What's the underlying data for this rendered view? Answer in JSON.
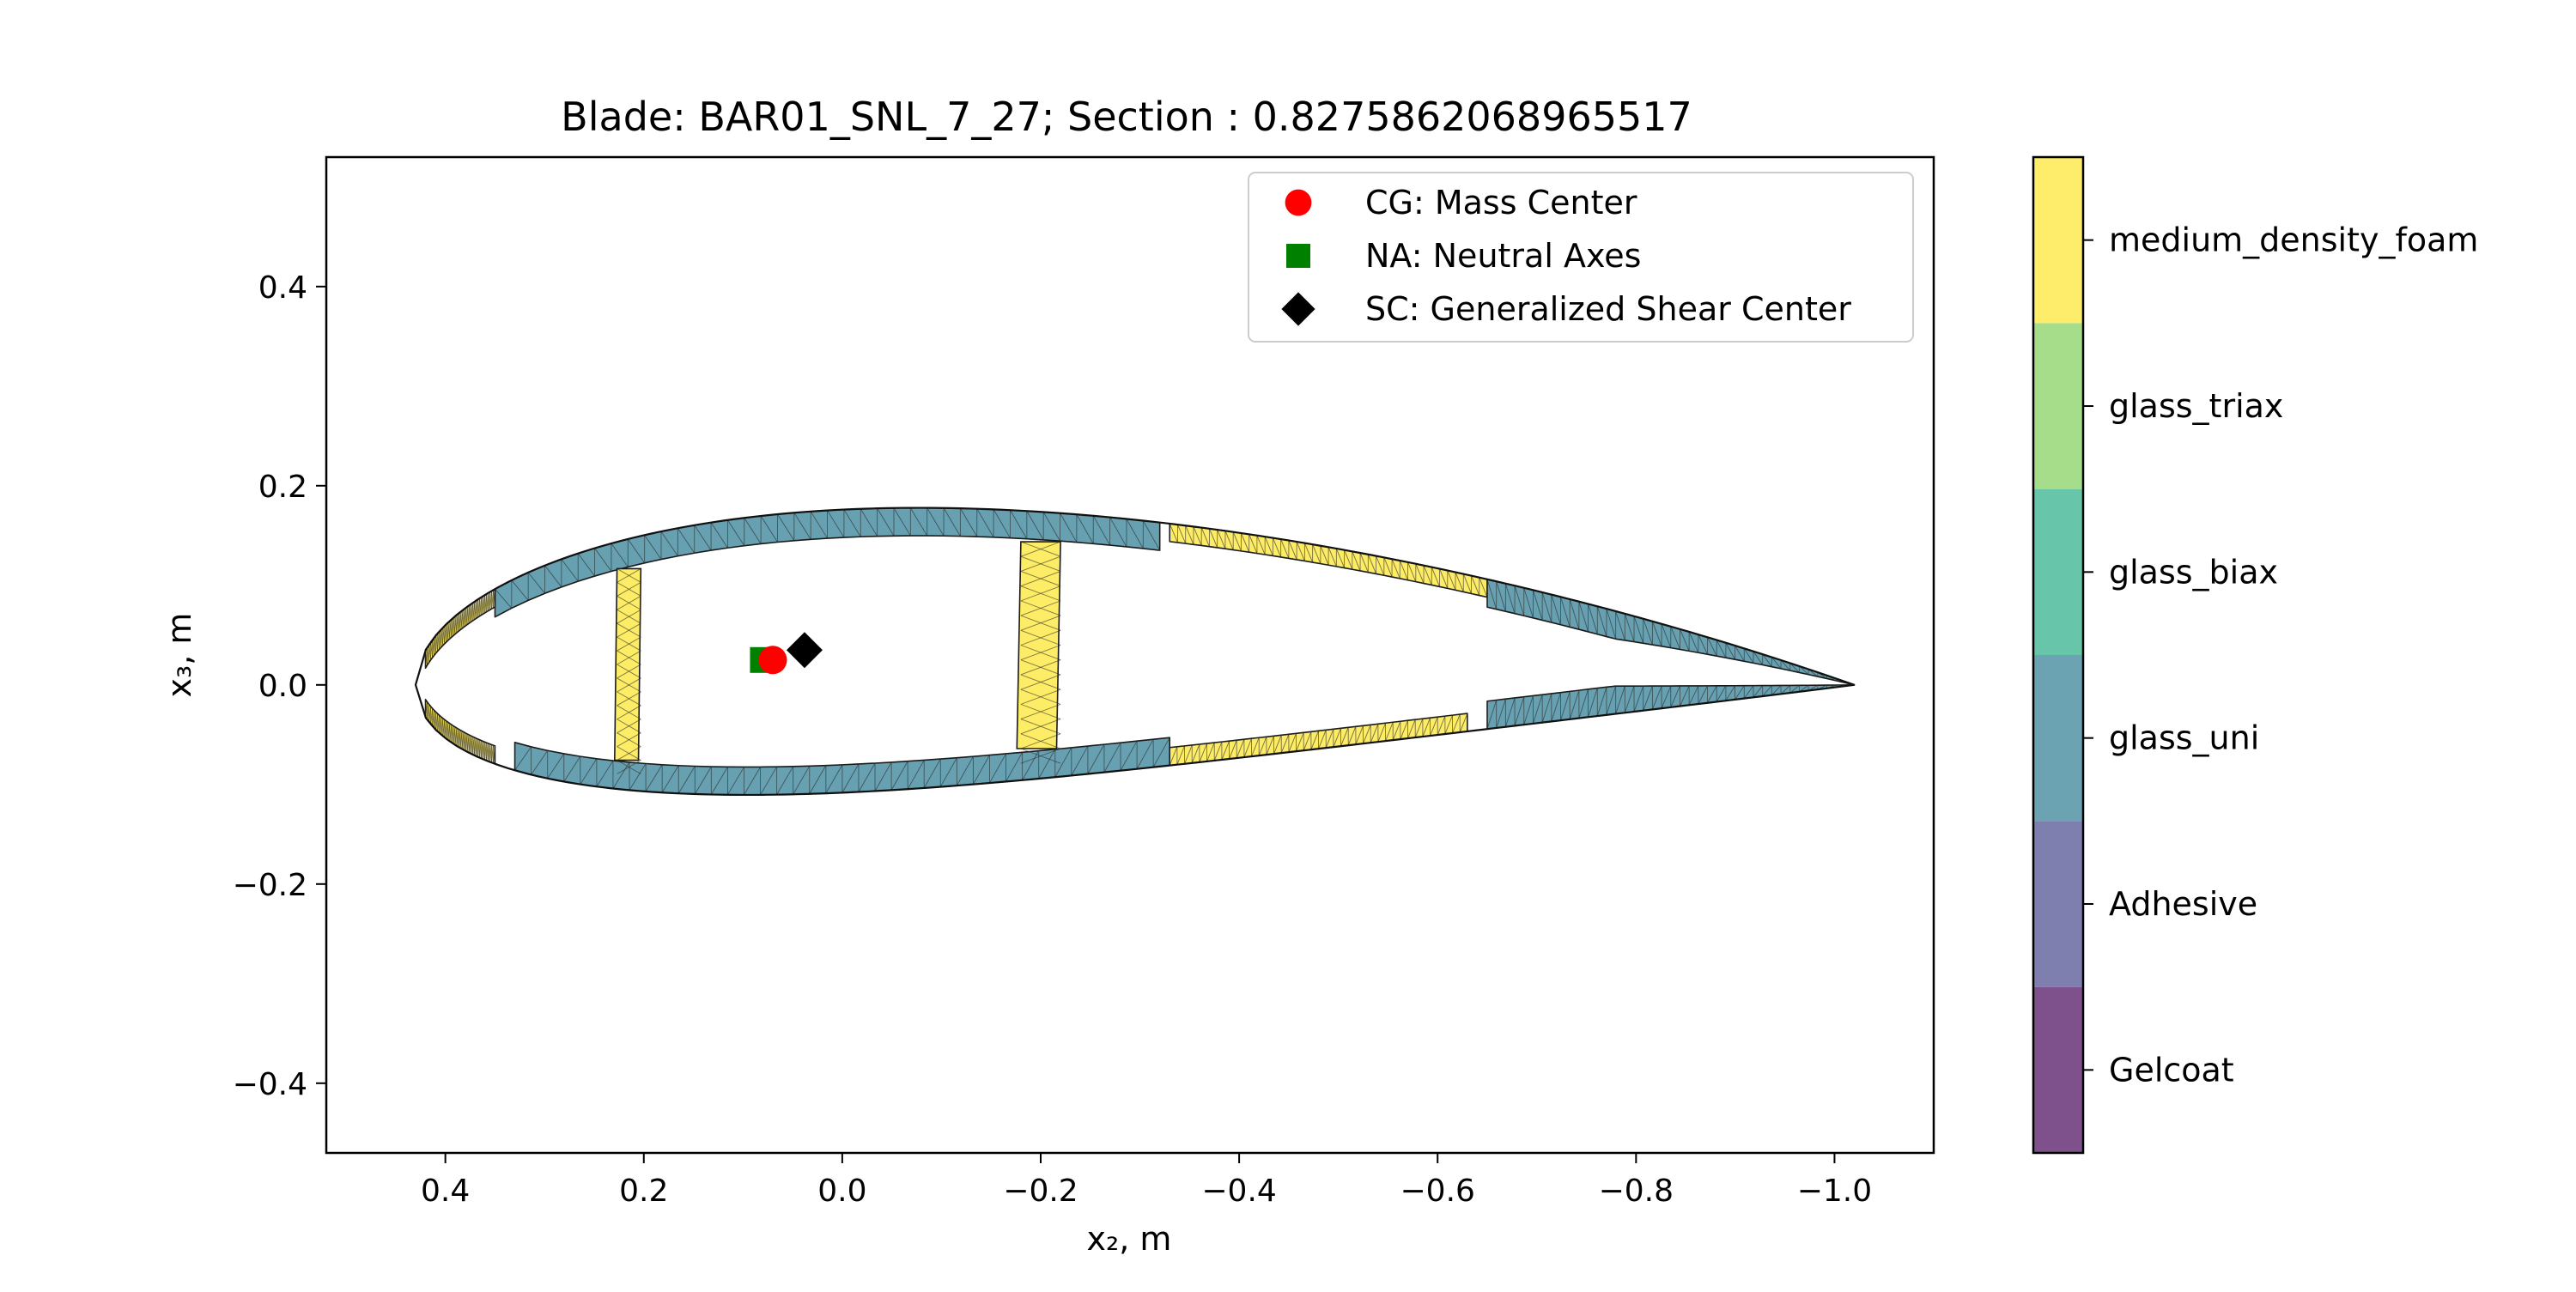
{
  "chart_data": {
    "type": "scatter",
    "title": "Blade: BAR01_SNL_7_27; Section : 0.8275862068965517",
    "xlabel": "x₂, m",
    "ylabel": "x₃, m",
    "xlim": [
      0.52,
      -1.1
    ],
    "ylim": [
      -0.47,
      0.53
    ],
    "x_ticks": [
      0.4,
      0.2,
      0.0,
      -0.2,
      -0.4,
      -0.6,
      -0.8,
      -1.0
    ],
    "x_tick_labels": [
      "0.4",
      "0.2",
      "0.0",
      "−0.2",
      "−0.4",
      "−0.6",
      "−0.8",
      "−1.0"
    ],
    "y_ticks": [
      0.4,
      0.2,
      0.0,
      -0.2,
      -0.4
    ],
    "y_tick_labels": [
      "0.4",
      "0.2",
      "0.0",
      "−0.2",
      "−0.4"
    ],
    "grid": false,
    "legend_position": "top-right",
    "points": [
      {
        "name": "CG: Mass Center",
        "x": 0.07,
        "y": 0.025,
        "marker": "circle",
        "color": "#ff0000"
      },
      {
        "name": "NA: Neutral Axes",
        "x": 0.08,
        "y": 0.025,
        "marker": "square",
        "color": "#008000"
      },
      {
        "name": "SC: Generalized Shear Center",
        "x": 0.038,
        "y": 0.035,
        "marker": "diamond",
        "color": "#000000"
      }
    ],
    "airfoil": {
      "leading_edge_x": 0.43,
      "trailing_edge_x": -1.02,
      "max_upper_y": 0.17,
      "min_lower_y": -0.115,
      "webs_x": [
        0.215,
        -0.2
      ],
      "regions": [
        {
          "material": "glass_uni",
          "x_from": 0.35,
          "x_to": -0.32,
          "side": "upper"
        },
        {
          "material": "glass_uni",
          "x_from": 0.33,
          "x_to": -0.33,
          "side": "lower"
        },
        {
          "material": "medium_density_foam",
          "x_from": 0.42,
          "x_to": 0.35,
          "side": "upper"
        },
        {
          "material": "medium_density_foam",
          "x_from": 0.42,
          "x_to": 0.35,
          "side": "lower"
        },
        {
          "material": "medium_density_foam",
          "x_from": -0.33,
          "x_to": -0.65,
          "side": "upper"
        },
        {
          "material": "medium_density_foam",
          "x_from": -0.33,
          "x_to": -0.63,
          "side": "lower"
        },
        {
          "material": "glass_uni",
          "x_from": -0.65,
          "x_to": -1.02,
          "side": "upper"
        },
        {
          "material": "glass_uni",
          "x_from": -0.65,
          "x_to": -1.02,
          "side": "lower"
        }
      ]
    },
    "colorbar": {
      "categories": [
        "Gelcoat",
        "Adhesive",
        "glass_uni",
        "glass_biax",
        "glass_triax",
        "medium_density_foam"
      ],
      "colors": [
        "#7a4b88",
        "#7a7bab",
        "#67a0b0",
        "#62c4a6",
        "#a2dc87",
        "#fdec65"
      ]
    }
  }
}
